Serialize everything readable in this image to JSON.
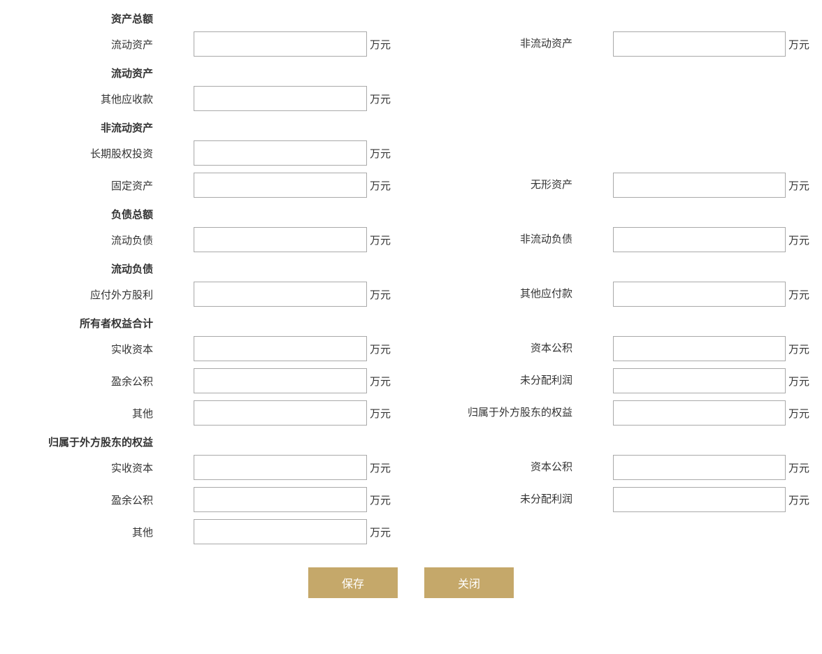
{
  "unit": "万元",
  "colors": {
    "text": "#333333",
    "inputBorder": "#a9a9a9",
    "buttonBg": "#c5a86a",
    "buttonText": "#ffffff",
    "background": "#ffffff"
  },
  "sections": {
    "totalAssets": {
      "header": "资产总额"
    },
    "currentAssets": {
      "header": "流动资产"
    },
    "nonCurrentAssets": {
      "header": "非流动资产"
    },
    "totalLiabilities": {
      "header": "负债总额"
    },
    "currentLiabilities": {
      "header": "流动负债"
    },
    "ownersEquity": {
      "header": "所有者权益合计"
    },
    "foreignEquity": {
      "header": "归属于外方股东的权益"
    }
  },
  "fields": {
    "currentAssetsField": {
      "label": "流动资产",
      "value": ""
    },
    "nonCurrentAssetsField": {
      "label": "非流动资产",
      "value": ""
    },
    "otherReceivables": {
      "label": "其他应收款",
      "value": ""
    },
    "longTermEquityInvestment": {
      "label": "长期股权投资",
      "value": ""
    },
    "fixedAssets": {
      "label": "固定资产",
      "value": ""
    },
    "intangibleAssets": {
      "label": "无形资产",
      "value": ""
    },
    "currentLiabilitiesField": {
      "label": "流动负债",
      "value": ""
    },
    "nonCurrentLiabilitiesField": {
      "label": "非流动负债",
      "value": ""
    },
    "dividendsPayableForeign": {
      "label": "应付外方股利",
      "value": ""
    },
    "otherPayables": {
      "label": "其他应付款",
      "value": ""
    },
    "paidInCapital1": {
      "label": "实收资本",
      "value": ""
    },
    "capitalReserve1": {
      "label": "资本公积",
      "value": ""
    },
    "surplusReserve1": {
      "label": "盈余公积",
      "value": ""
    },
    "undistributedProfit1": {
      "label": "未分配利润",
      "value": ""
    },
    "other1": {
      "label": "其他",
      "value": ""
    },
    "foreignShareholderEquity": {
      "label": "归属于外方股东的权益",
      "value": ""
    },
    "paidInCapital2": {
      "label": "实收资本",
      "value": ""
    },
    "capitalReserve2": {
      "label": "资本公积",
      "value": ""
    },
    "surplusReserve2": {
      "label": "盈余公积",
      "value": ""
    },
    "undistributedProfit2": {
      "label": "未分配利润",
      "value": ""
    },
    "other2": {
      "label": "其他",
      "value": ""
    }
  },
  "buttons": {
    "save": "保存",
    "close": "关闭"
  }
}
